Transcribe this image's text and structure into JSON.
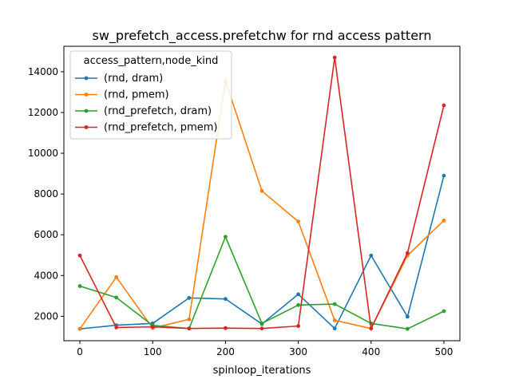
{
  "chart_data": {
    "type": "line",
    "title": "sw_prefetch_access.prefetchw for rnd access pattern",
    "xlabel": "spinloop_iterations",
    "ylabel": "",
    "xlim": [
      -22,
      522
    ],
    "ylim": [
      800,
      15250
    ],
    "xticks": [
      0,
      100,
      200,
      300,
      400,
      500
    ],
    "yticks": [
      2000,
      4000,
      6000,
      8000,
      10000,
      12000,
      14000
    ],
    "xtick_labels": [
      "0",
      "100",
      "200",
      "300",
      "400",
      "500"
    ],
    "ytick_labels": [
      "2000",
      "4000",
      "6000",
      "8000",
      "10000",
      "12000",
      "14000"
    ],
    "grid": false,
    "legend_placement": "top-left",
    "legend_title": "access_pattern,node_kind",
    "x": [
      0,
      50,
      100,
      150,
      200,
      250,
      300,
      350,
      400,
      450,
      500
    ],
    "series": [
      {
        "name": "(rnd, dram)",
        "color": "#1f77b4",
        "values": [
          1380,
          1560,
          1650,
          2900,
          2850,
          1620,
          3080,
          1400,
          4980,
          1980,
          8900
        ]
      },
      {
        "name": "(rnd, pmem)",
        "color": "#ff7f0e",
        "values": [
          1380,
          3920,
          1420,
          1850,
          13550,
          8150,
          6650,
          1800,
          1400,
          4980,
          6700
        ]
      },
      {
        "name": "(rnd_prefetch, dram)",
        "color": "#2ca02c",
        "values": [
          3480,
          2920,
          1550,
          1400,
          5900,
          1650,
          2550,
          2600,
          1650,
          1380,
          2250
        ]
      },
      {
        "name": "(rnd_prefetch, pmem)",
        "color": "#d62728",
        "values": [
          4980,
          1450,
          1480,
          1400,
          1420,
          1400,
          1520,
          14700,
          1400,
          5100,
          12350
        ]
      }
    ]
  }
}
